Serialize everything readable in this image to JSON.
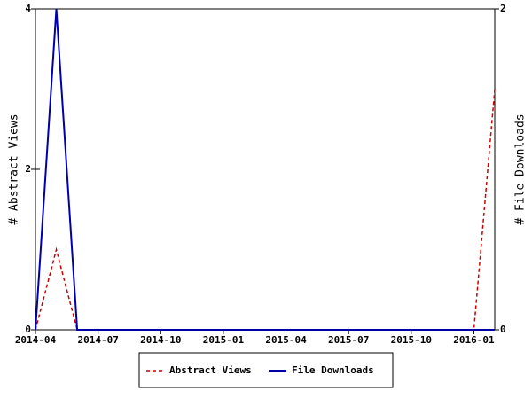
{
  "chart_data": {
    "type": "line",
    "x": [
      "2014-04",
      "2014-05",
      "2014-06",
      "2014-07",
      "2014-08",
      "2014-09",
      "2014-10",
      "2014-11",
      "2014-12",
      "2015-01",
      "2015-02",
      "2015-03",
      "2015-04",
      "2015-05",
      "2015-06",
      "2015-07",
      "2015-08",
      "2015-09",
      "2015-10",
      "2015-11",
      "2015-12",
      "2016-01",
      "2016-02"
    ],
    "xlim": [
      "2014-04",
      "2016-02"
    ],
    "xticks": [
      "2014-04",
      "2014-07",
      "2014-10",
      "2015-01",
      "2015-04",
      "2015-07",
      "2015-10",
      "2016-01"
    ],
    "ylabel": "# Abstract Views",
    "ylim": [
      0,
      4
    ],
    "yticks": [
      0,
      2,
      4
    ],
    "y2label": "# File Downloads",
    "y2lim": [
      0,
      2
    ],
    "y2ticks": [
      0,
      2
    ],
    "series": [
      {
        "name": "Abstract Views",
        "color": "#cc0000",
        "dashed": true,
        "values": [
          0,
          1,
          0,
          0,
          0,
          0,
          0,
          0,
          0,
          0,
          0,
          0,
          0,
          0,
          0,
          0,
          0,
          0,
          0,
          0,
          0,
          0,
          3
        ]
      },
      {
        "name": "File Downloads",
        "color": "#0000aa",
        "dashed": false,
        "axis": "y2",
        "values": [
          0,
          2,
          0,
          0,
          0,
          0,
          0,
          0,
          0,
          0,
          0,
          0,
          0,
          0,
          0,
          0,
          0,
          0,
          0,
          0,
          0,
          0,
          0
        ]
      }
    ]
  }
}
